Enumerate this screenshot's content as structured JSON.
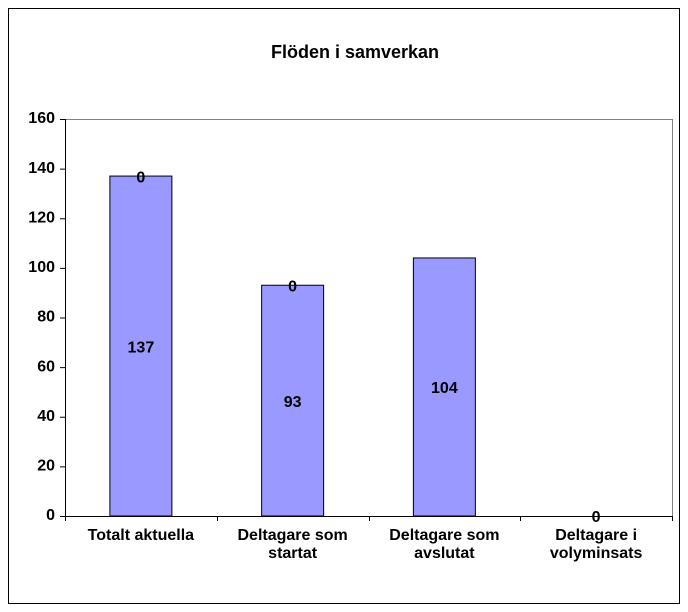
{
  "chart_data": {
    "type": "stacked_bar",
    "title": "Flöden i samverkan",
    "categories": [
      "Totalt aktuella",
      "Deltagare som startat",
      "Deltagare som avslutat",
      "Deltagare i volyminsats"
    ],
    "series": [
      {
        "color": "#9999ff",
        "values": [
          137,
          93,
          104,
          0
        ]
      },
      {
        "color": "#9999ff",
        "values": [
          0,
          0,
          null,
          null
        ]
      }
    ],
    "ylim": [
      0,
      160
    ],
    "yticks": [
      0,
      20,
      40,
      60,
      80,
      100,
      120,
      140,
      160
    ]
  }
}
